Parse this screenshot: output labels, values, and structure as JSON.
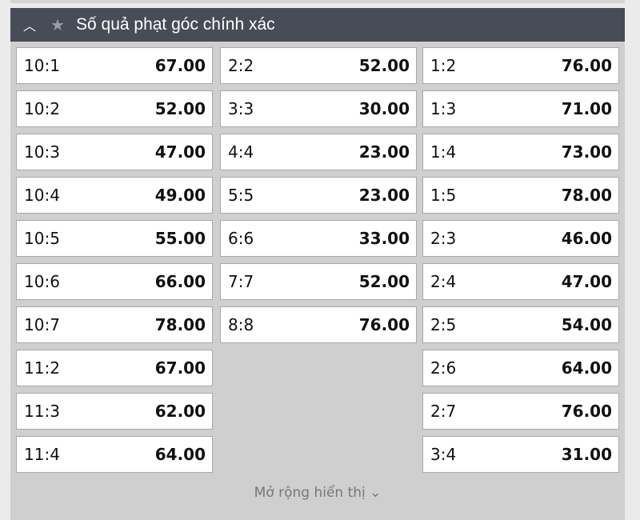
{
  "header": {
    "title": "Số quả phạt góc chính xác",
    "collapse_icon": "chevron-up-icon",
    "favorite_icon": "star-icon"
  },
  "columns": [
    [
      {
        "score": "10:1",
        "odds": "67.00"
      },
      {
        "score": "10:2",
        "odds": "52.00"
      },
      {
        "score": "10:3",
        "odds": "47.00"
      },
      {
        "score": "10:4",
        "odds": "49.00"
      },
      {
        "score": "10:5",
        "odds": "55.00"
      },
      {
        "score": "10:6",
        "odds": "66.00"
      },
      {
        "score": "10:7",
        "odds": "78.00"
      },
      {
        "score": "11:2",
        "odds": "67.00"
      },
      {
        "score": "11:3",
        "odds": "62.00"
      },
      {
        "score": "11:4",
        "odds": "64.00"
      }
    ],
    [
      {
        "score": "2:2",
        "odds": "52.00"
      },
      {
        "score": "3:3",
        "odds": "30.00"
      },
      {
        "score": "4:4",
        "odds": "23.00"
      },
      {
        "score": "5:5",
        "odds": "23.00"
      },
      {
        "score": "6:6",
        "odds": "33.00"
      },
      {
        "score": "7:7",
        "odds": "52.00"
      },
      {
        "score": "8:8",
        "odds": "76.00"
      }
    ],
    [
      {
        "score": "1:2",
        "odds": "76.00"
      },
      {
        "score": "1:3",
        "odds": "71.00"
      },
      {
        "score": "1:4",
        "odds": "73.00"
      },
      {
        "score": "1:5",
        "odds": "78.00"
      },
      {
        "score": "2:3",
        "odds": "46.00"
      },
      {
        "score": "2:4",
        "odds": "47.00"
      },
      {
        "score": "2:5",
        "odds": "54.00"
      },
      {
        "score": "2:6",
        "odds": "64.00"
      },
      {
        "score": "2:7",
        "odds": "76.00"
      },
      {
        "score": "3:4",
        "odds": "31.00"
      }
    ]
  ],
  "footer": {
    "expand_label": "Mở rộng hiển thị ⌄"
  }
}
